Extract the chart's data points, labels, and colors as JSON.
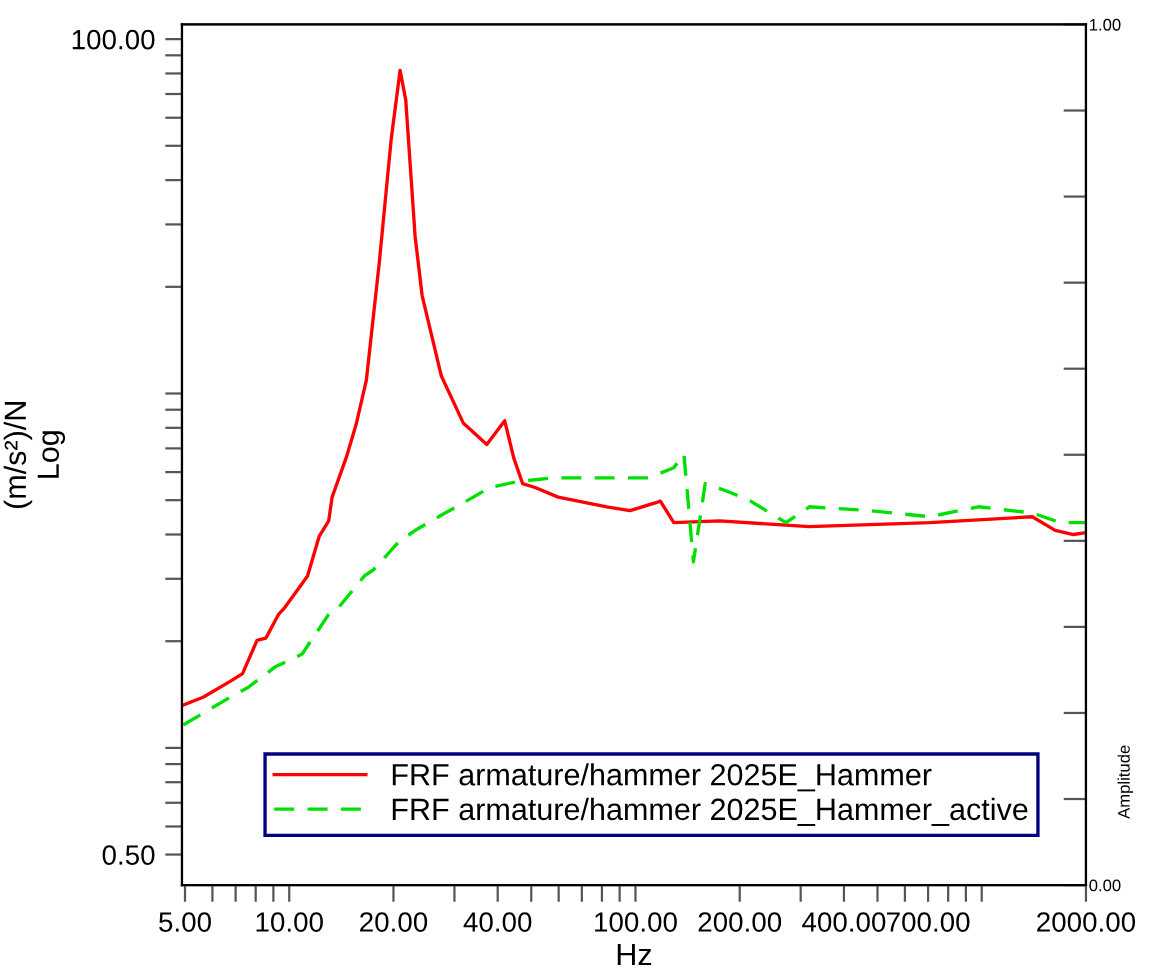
{
  "chart_data": {
    "type": "line",
    "xlabel": "Hz",
    "ylabel": "(m/s²)/N\nLog",
    "y2label": "Amplitude",
    "log": "xy",
    "grid": false,
    "legend": "bottom left",
    "marker": "none",
    "xlim": [
      4.9,
      2000
    ],
    "ylim": [
      0.41,
      110
    ],
    "y2lim": [
      0,
      1
    ],
    "xticks": [
      {
        "value": 5,
        "label": "5.00"
      },
      {
        "value": 6,
        "label": null
      },
      {
        "value": 7,
        "label": null
      },
      {
        "value": 8,
        "label": null
      },
      {
        "value": 9,
        "label": null
      },
      {
        "value": 10,
        "label": "10.00"
      },
      {
        "value": 20,
        "label": "20.00"
      },
      {
        "value": 30,
        "label": null
      },
      {
        "value": 40,
        "label": "40.00"
      },
      {
        "value": 50,
        "label": null
      },
      {
        "value": 60,
        "label": null
      },
      {
        "value": 70,
        "label": null
      },
      {
        "value": 80,
        "label": null
      },
      {
        "value": 90,
        "label": null
      },
      {
        "value": 100,
        "label": "100.00"
      },
      {
        "value": 200,
        "label": "200.00"
      },
      {
        "value": 300,
        "label": null
      },
      {
        "value": 400,
        "label": "400.00"
      },
      {
        "value": 500,
        "label": null
      },
      {
        "value": 600,
        "label": null
      },
      {
        "value": 700,
        "label": "700.00"
      },
      {
        "value": 800,
        "label": null
      },
      {
        "value": 900,
        "label": null
      },
      {
        "value": 1000,
        "label": null
      },
      {
        "value": 2000,
        "label": "2000.00"
      }
    ],
    "yticks": [
      {
        "value": 0.5,
        "label": "0.50"
      },
      {
        "value": 0.6,
        "label": null
      },
      {
        "value": 0.7,
        "label": null
      },
      {
        "value": 0.8,
        "label": null
      },
      {
        "value": 0.9,
        "label": null
      },
      {
        "value": 1,
        "label": null
      },
      {
        "value": 2,
        "label": null
      },
      {
        "value": 3,
        "label": null
      },
      {
        "value": 4,
        "label": null
      },
      {
        "value": 5,
        "label": null
      },
      {
        "value": 6,
        "label": null
      },
      {
        "value": 7,
        "label": null
      },
      {
        "value": 8,
        "label": null
      },
      {
        "value": 9,
        "label": null
      },
      {
        "value": 10,
        "label": null
      },
      {
        "value": 20,
        "label": null
      },
      {
        "value": 30,
        "label": null
      },
      {
        "value": 40,
        "label": null
      },
      {
        "value": 50,
        "label": null
      },
      {
        "value": 60,
        "label": null
      },
      {
        "value": 70,
        "label": null
      },
      {
        "value": 80,
        "label": null
      },
      {
        "value": 90,
        "label": null
      },
      {
        "value": 100,
        "label": "100.00"
      }
    ],
    "y2ticks": [
      {
        "value": 0,
        "label": "0.00"
      },
      {
        "value": 0.1,
        "label": null
      },
      {
        "value": 0.2,
        "label": null
      },
      {
        "value": 0.3,
        "label": null
      },
      {
        "value": 0.4,
        "label": null
      },
      {
        "value": 0.5,
        "label": null
      },
      {
        "value": 0.6,
        "label": null
      },
      {
        "value": 0.7,
        "label": null
      },
      {
        "value": 0.8,
        "label": null
      },
      {
        "value": 0.9,
        "label": null
      },
      {
        "value": 1,
        "label": "1.00"
      }
    ],
    "series": [
      {
        "name": "FRF armature/hammer 2025E_Hammer",
        "color": "#ff0000",
        "line_style": "solid",
        "x": [
          4.94,
          5.64,
          6.75,
          7.33,
          8.07,
          8.56,
          9.31,
          9.65,
          10.9,
          11.3,
          12.2,
          13.0,
          13.3,
          14.6,
          15.6,
          16.7,
          18.2,
          19.7,
          20.9,
          21.7,
          23.1,
          24.2,
          27.5,
          31.8,
          37.2,
          41.9,
          44.5,
          47.2,
          51.3,
          59.8,
          82.6,
          96.4,
          114,
          118,
          129,
          175,
          318,
          708,
          1400,
          1630,
          1840,
          2000
        ],
        "values": [
          1.32,
          1.39,
          1.54,
          1.62,
          2.01,
          2.04,
          2.38,
          2.47,
          2.91,
          3.06,
          3.95,
          4.37,
          5.1,
          6.58,
          8.17,
          10.9,
          23.4,
          52.2,
          81.6,
          67.4,
          27.7,
          18.9,
          11.2,
          8.26,
          7.18,
          8.38,
          6.58,
          5.57,
          5.43,
          5.1,
          4.79,
          4.67,
          4.91,
          4.97,
          4.32,
          4.37,
          4.21,
          4.32,
          4.49,
          4.11,
          4.0,
          4.05
        ]
      },
      {
        "name": "FRF armature/hammer 2025E_Hammer_active",
        "color": "#00e000",
        "line_style": "dashed",
        "x": [
          4.94,
          6.75,
          7.6,
          9.09,
          10.9,
          13.0,
          13.8,
          16.5,
          17.5,
          20.9,
          23.6,
          28.2,
          31.8,
          38.0,
          45.5,
          57.8,
          82.6,
          109,
          129,
          138,
          147,
          159,
          184,
          215,
          272,
          318,
          477,
          708,
          977,
          1400,
          1690,
          2000
        ],
        "values": [
          1.16,
          1.39,
          1.48,
          1.69,
          1.84,
          2.38,
          2.47,
          3.06,
          3.18,
          3.85,
          4.16,
          4.6,
          4.91,
          5.43,
          5.64,
          5.78,
          5.78,
          5.78,
          6.17,
          6.75,
          3.35,
          5.57,
          5.3,
          4.97,
          4.32,
          4.79,
          4.67,
          4.49,
          4.79,
          4.6,
          4.32,
          4.32
        ]
      }
    ]
  }
}
